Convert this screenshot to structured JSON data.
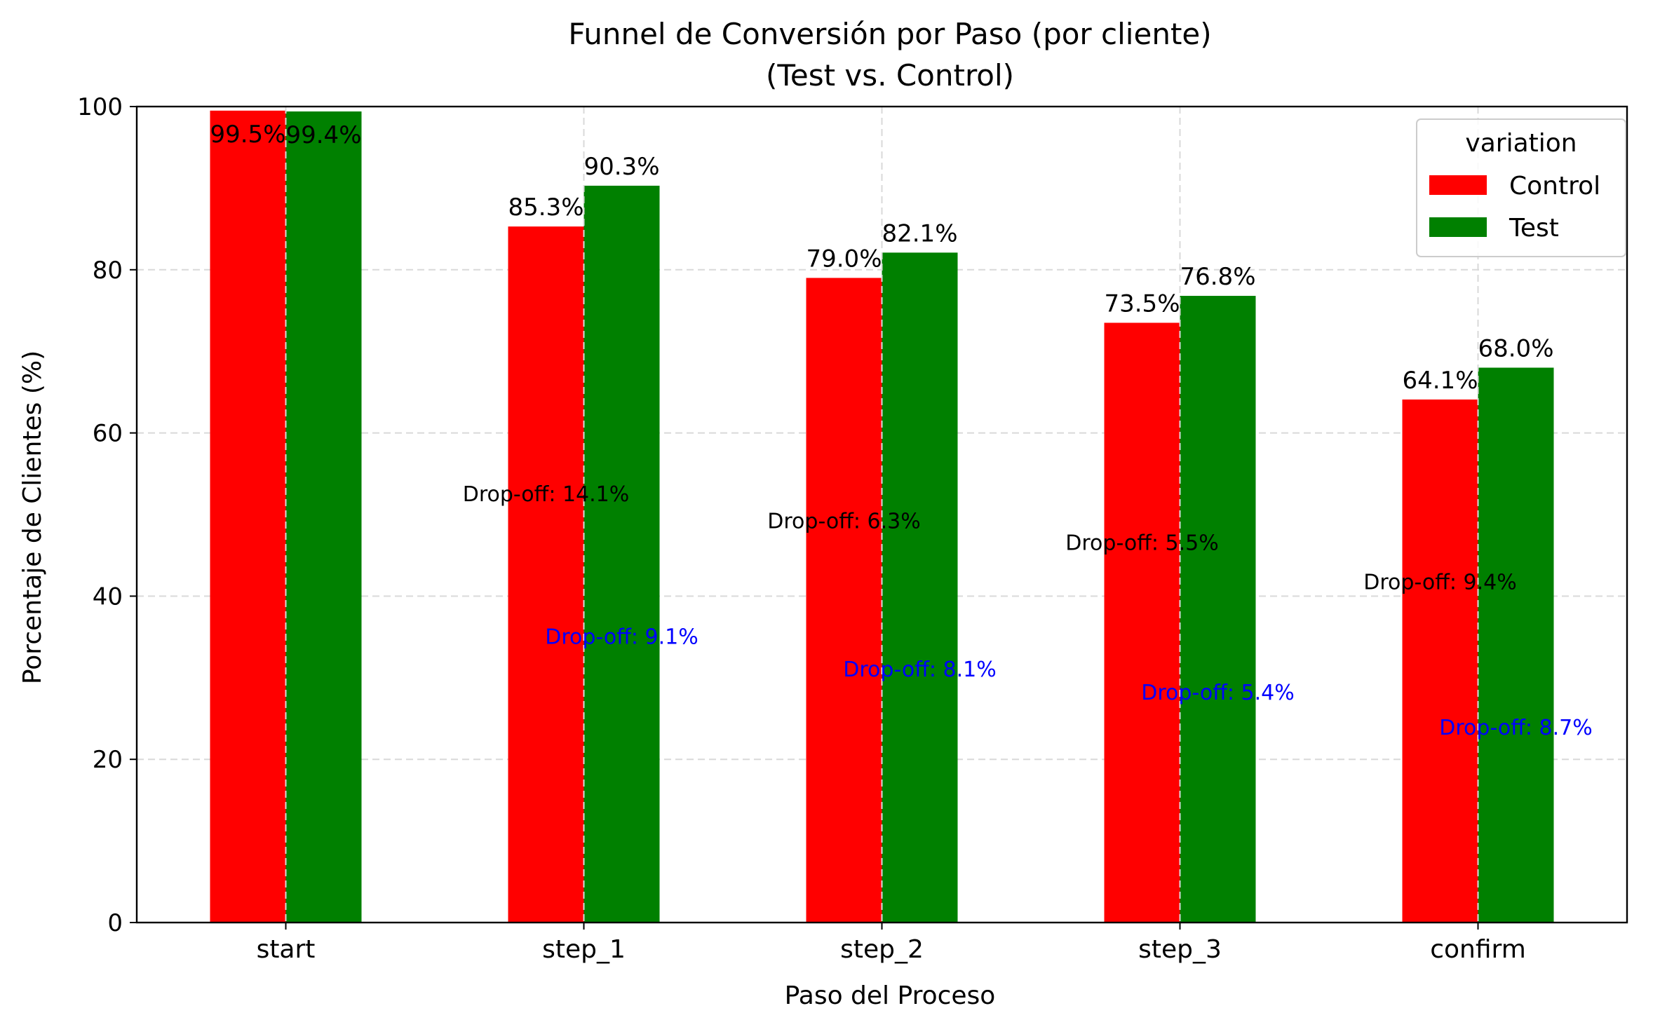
{
  "chart_data": {
    "type": "bar",
    "title": "Funnel de Conversión por Paso (por cliente)",
    "subtitle": "(Test vs. Control)",
    "xlabel": "Paso del Proceso",
    "ylabel": "Porcentaje de Clientes (%)",
    "categories": [
      "start",
      "step_1",
      "step_2",
      "step_3",
      "confirm"
    ],
    "ylim": [
      0,
      100
    ],
    "yticks": [
      0,
      20,
      40,
      60,
      80,
      100
    ],
    "grid": true,
    "legend": {
      "title": "variation",
      "placement": "top-right"
    },
    "series": [
      {
        "name": "Control",
        "color": "#ff0000",
        "values": [
          99.5,
          85.3,
          79.0,
          73.5,
          64.1
        ],
        "labels": [
          "99.5%",
          "85.3%",
          "79.0%",
          "73.5%",
          "64.1%"
        ]
      },
      {
        "name": "Test",
        "color": "#008000",
        "values": [
          99.4,
          90.3,
          82.1,
          76.8,
          68.0
        ],
        "labels": [
          "99.4%",
          "90.3%",
          "82.1%",
          "76.8%",
          "68.0%"
        ]
      }
    ],
    "annotations": {
      "control_dropoff": {
        "color": "#000000",
        "items": [
          {
            "category_index": 1,
            "y": 52.5,
            "text": "Drop-off: 14.1%"
          },
          {
            "category_index": 2,
            "y": 49.2,
            "text": "Drop-off: 6.3%"
          },
          {
            "category_index": 3,
            "y": 46.5,
            "text": "Drop-off: 5.5%"
          },
          {
            "category_index": 4,
            "y": 41.7,
            "text": "Drop-off: 9.4%"
          }
        ]
      },
      "test_dropoff": {
        "color": "#0000ff",
        "items": [
          {
            "category_index": 1,
            "y": 35.0,
            "text": "Drop-off: 9.1%"
          },
          {
            "category_index": 2,
            "y": 31.0,
            "text": "Drop-off: 8.1%"
          },
          {
            "category_index": 3,
            "y": 28.2,
            "text": "Drop-off: 5.4%"
          },
          {
            "category_index": 4,
            "y": 23.9,
            "text": "Drop-off: 8.7%"
          }
        ]
      }
    }
  }
}
